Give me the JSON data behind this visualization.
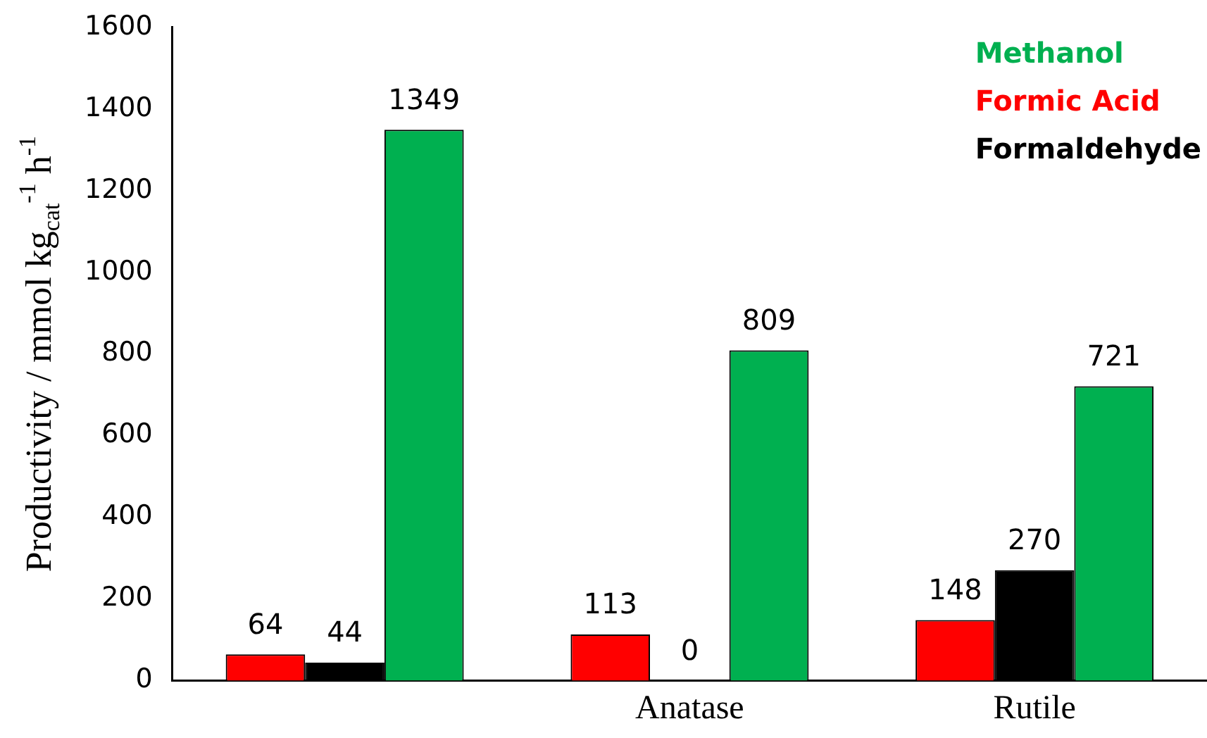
{
  "chart_data": {
    "type": "bar",
    "ylabel": "Productivity / mmol kg$_{cat}$$^{-1}$ h$^{-1}$",
    "categories": [
      null,
      "Anatase",
      "Rutile"
    ],
    "series": [
      {
        "name": "Formic Acid",
        "color": "#ff0000",
        "values": [
          64,
          113,
          148
        ]
      },
      {
        "name": "Formaldehyde",
        "color": "#000000",
        "values": [
          44,
          0,
          270
        ]
      },
      {
        "name": "Methanol",
        "color": "#00b050",
        "values": [
          1349,
          809,
          721
        ]
      }
    ],
    "ylim": [
      0,
      1600
    ],
    "yticks": [
      0,
      200,
      400,
      600,
      800,
      1000,
      1200,
      1400,
      1600
    ],
    "data_labels": true,
    "grid": false,
    "legend": "top right"
  }
}
